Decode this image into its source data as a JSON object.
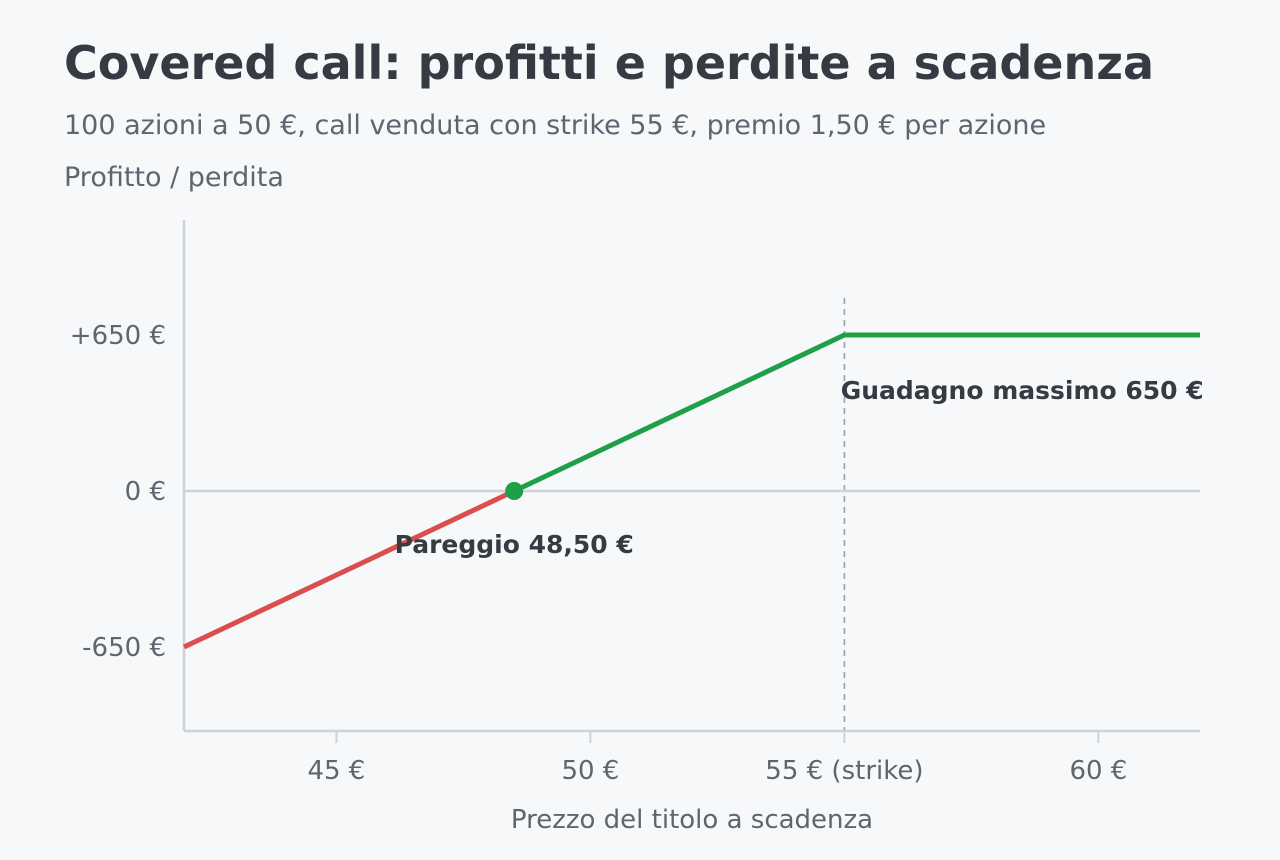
{
  "chart_data": {
    "type": "line",
    "title": "Covered call: profitti e perdite a scadenza",
    "subtitle": "100 azioni a 50 €, call venduta con strike 55 €, premio 1,50 € per azione",
    "ylabel": "Profitto / perdita",
    "xlabel": "Prezzo del titolo a scadenza",
    "xlim": [
      42,
      62
    ],
    "ylim": [
      -1200,
      1400
    ],
    "x_ticks": [
      {
        "value": 45,
        "label": "45 €"
      },
      {
        "value": 50,
        "label": "50 €"
      },
      {
        "value": 55,
        "label": "55 € (strike)"
      },
      {
        "value": 60,
        "label": "60 €"
      }
    ],
    "y_ticks": [
      {
        "value": 650,
        "label": "+650 €"
      },
      {
        "value": 0,
        "label": "0 €"
      },
      {
        "value": -650,
        "label": "-650 €"
      }
    ],
    "series": [
      {
        "color": "#dc4e4e",
        "points": [
          [
            42,
            -650
          ],
          [
            48.5,
            0
          ]
        ]
      },
      {
        "color": "#1fa048",
        "points": [
          [
            48.5,
            0
          ],
          [
            55,
            650
          ],
          [
            62,
            650
          ]
        ]
      }
    ],
    "strike": 55,
    "breakeven": {
      "x": 48.5,
      "y": 0,
      "color": "#1fa048"
    },
    "annotations": [
      {
        "key": "breakeven",
        "text": "Pareggio 48,50 €",
        "x": 48.5,
        "y": -220
      },
      {
        "key": "maxgain",
        "text": "Guadagno massimo 650 €",
        "x": 58.5,
        "y": 420
      }
    ]
  }
}
